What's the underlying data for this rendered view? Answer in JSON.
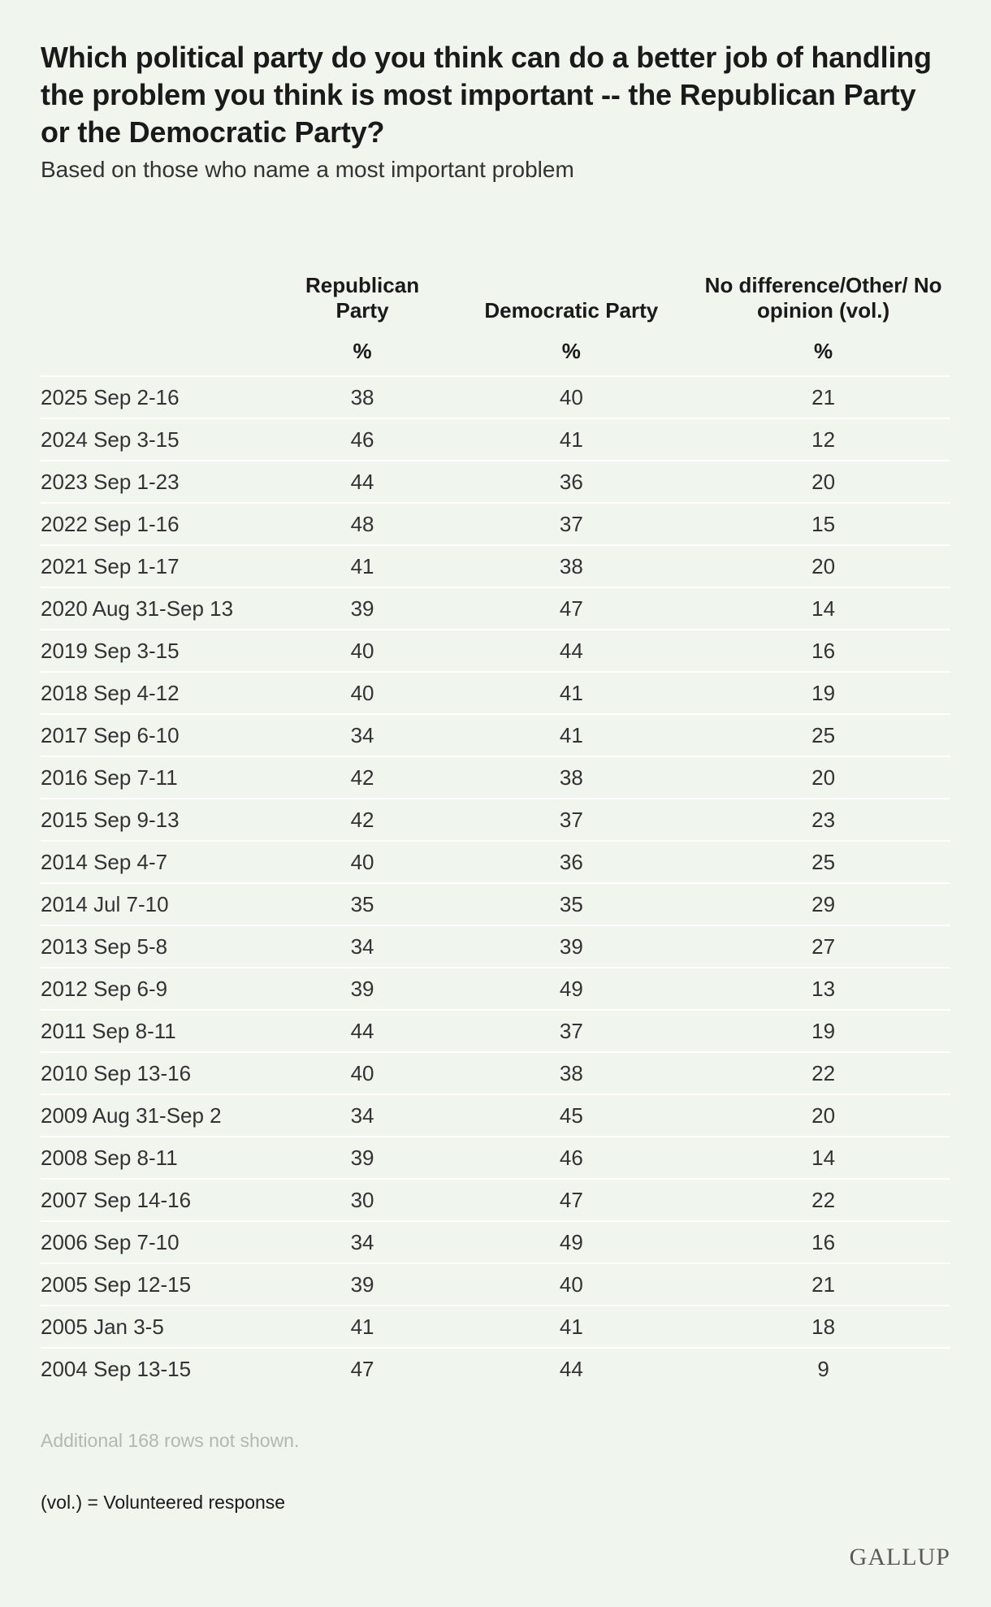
{
  "title": "Which political party do you think can do a better job of handling the problem you think is most important -- the Republican Party or the Democratic Party?",
  "subtitle": "Based on those who name a most important problem",
  "chart_data": {
    "type": "table",
    "columns": [
      {
        "label": "Republican Party",
        "unit": "%"
      },
      {
        "label": "Democratic Party",
        "unit": "%"
      },
      {
        "label": "No difference/Other/ No opinion (vol.)",
        "unit": "%"
      }
    ],
    "rows": [
      {
        "label": "2025 Sep 2-16",
        "values": [
          38,
          40,
          21
        ]
      },
      {
        "label": "2024 Sep 3-15",
        "values": [
          46,
          41,
          12
        ]
      },
      {
        "label": "2023 Sep 1-23",
        "values": [
          44,
          36,
          20
        ]
      },
      {
        "label": "2022 Sep 1-16",
        "values": [
          48,
          37,
          15
        ]
      },
      {
        "label": "2021 Sep 1-17",
        "values": [
          41,
          38,
          20
        ]
      },
      {
        "label": "2020 Aug 31-Sep 13",
        "values": [
          39,
          47,
          14
        ]
      },
      {
        "label": "2019 Sep 3-15",
        "values": [
          40,
          44,
          16
        ]
      },
      {
        "label": "2018 Sep 4-12",
        "values": [
          40,
          41,
          19
        ]
      },
      {
        "label": "2017 Sep 6-10",
        "values": [
          34,
          41,
          25
        ]
      },
      {
        "label": "2016 Sep 7-11",
        "values": [
          42,
          38,
          20
        ]
      },
      {
        "label": "2015 Sep 9-13",
        "values": [
          42,
          37,
          23
        ]
      },
      {
        "label": "2014 Sep 4-7",
        "values": [
          40,
          36,
          25
        ]
      },
      {
        "label": "2014 Jul 7-10",
        "values": [
          35,
          35,
          29
        ]
      },
      {
        "label": "2013 Sep 5-8",
        "values": [
          34,
          39,
          27
        ]
      },
      {
        "label": "2012 Sep 6-9",
        "values": [
          39,
          49,
          13
        ]
      },
      {
        "label": "2011 Sep 8-11",
        "values": [
          44,
          37,
          19
        ]
      },
      {
        "label": "2010 Sep 13-16",
        "values": [
          40,
          38,
          22
        ]
      },
      {
        "label": "2009 Aug 31-Sep 2",
        "values": [
          34,
          45,
          20
        ]
      },
      {
        "label": "2008 Sep 8-11",
        "values": [
          39,
          46,
          14
        ]
      },
      {
        "label": "2007 Sep 14-16",
        "values": [
          30,
          47,
          22
        ]
      },
      {
        "label": "2006 Sep 7-10",
        "values": [
          34,
          49,
          16
        ]
      },
      {
        "label": "2005 Sep 12-15",
        "values": [
          39,
          40,
          21
        ]
      },
      {
        "label": "2005 Jan 3-5",
        "values": [
          41,
          41,
          18
        ]
      },
      {
        "label": "2004 Sep 13-15",
        "values": [
          47,
          44,
          9
        ]
      }
    ]
  },
  "notes": {
    "rows_hidden": "Additional 168 rows not shown.",
    "vol": "(vol.) = Volunteered response"
  },
  "logo": "GALLUP",
  "colors": {
    "background": "#f0f5ee",
    "row_divider": "#ffffff",
    "muted_note": "#b3b8b1"
  }
}
